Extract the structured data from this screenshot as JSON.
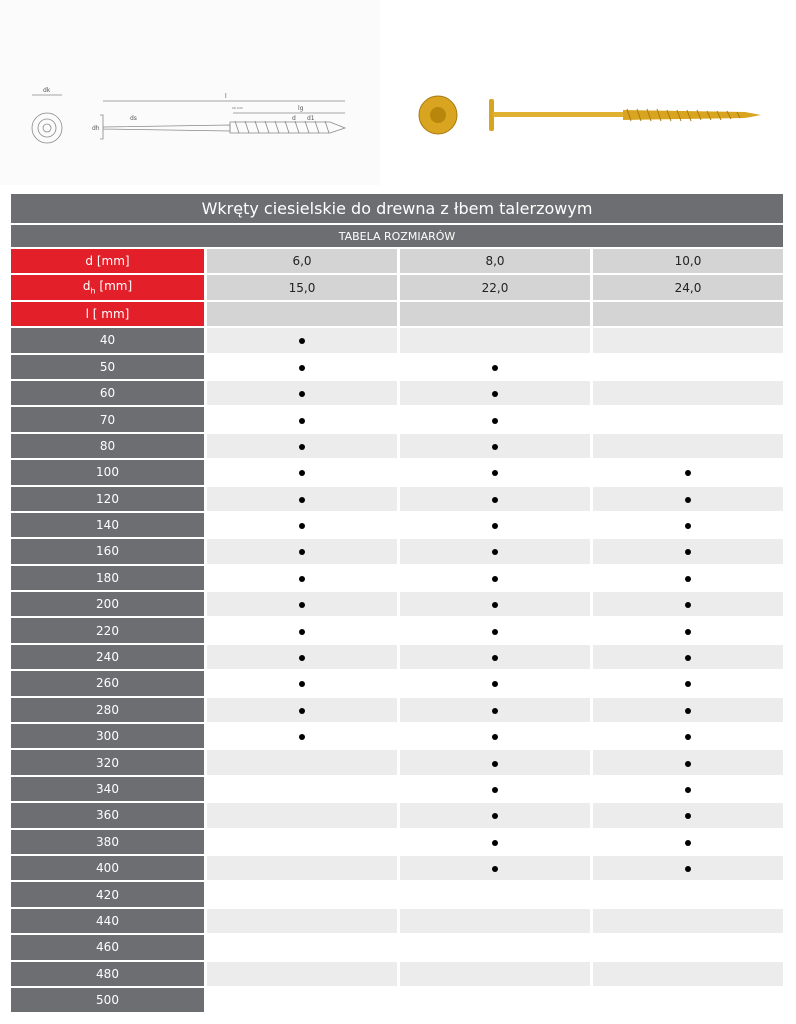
{
  "title": "Wkręty ciesielskie do drewna z łbem talerzowym",
  "subtitle": "TABELA ROZMIARÓW",
  "rows_header": {
    "d_label": "d [mm]",
    "dh_label": "[mm]",
    "dh_symbol": "d",
    "dh_sub": "h",
    "l_label": "l [ mm]",
    "d_values": [
      "6,0",
      "8,0",
      "10,0"
    ],
    "dh_values": [
      "15,0",
      "22,0",
      "24,0"
    ]
  },
  "diagram_labels": {
    "l": "l",
    "lg": "lg",
    "d": "d",
    "d1": "d1",
    "ds": "ds",
    "dk": "dk",
    "dh": "dh",
    "thread_note": "10 mm"
  },
  "lengths": [
    "40",
    "50",
    "60",
    "70",
    "80",
    "100",
    "120",
    "140",
    "160",
    "180",
    "200",
    "220",
    "240",
    "260",
    "280",
    "300",
    "320",
    "340",
    "360",
    "380",
    "400",
    "420",
    "440",
    "460",
    "480",
    "500"
  ],
  "availability": {
    "6,0": [
      "40",
      "50",
      "60",
      "70",
      "80",
      "100",
      "120",
      "140",
      "160",
      "180",
      "200",
      "220",
      "240",
      "260",
      "280",
      "300"
    ],
    "8,0": [
      "50",
      "60",
      "70",
      "80",
      "100",
      "120",
      "140",
      "160",
      "180",
      "200",
      "220",
      "240",
      "260",
      "280",
      "300",
      "320",
      "340",
      "360",
      "380",
      "400"
    ],
    "10,0": [
      "100",
      "120",
      "140",
      "160",
      "180",
      "200",
      "220",
      "240",
      "260",
      "280",
      "300",
      "320",
      "340",
      "360",
      "380",
      "400"
    ]
  },
  "colors": {
    "header_gray": "#6d6e71",
    "label_red": "#e3202a",
    "screw_gold": "#d9a520"
  }
}
